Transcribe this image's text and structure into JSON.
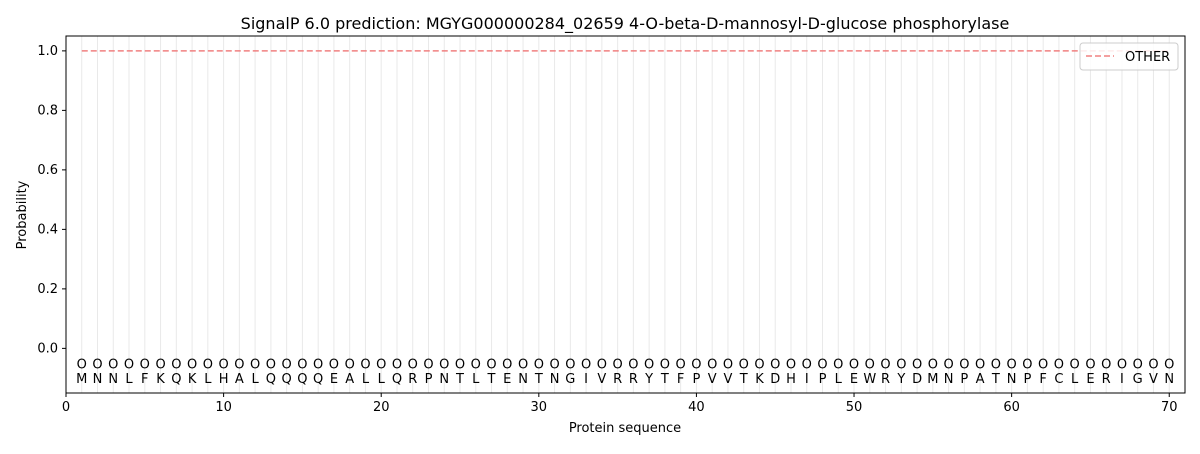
{
  "chart_data": {
    "type": "line",
    "title": "SignalP 6.0 prediction: MGYG000000284_02659 4-O-beta-D-mannosyl-D-glucose phosphorylase",
    "xlabel": "Protein sequence",
    "ylabel": "Probability",
    "xlim": [
      0,
      71
    ],
    "ylim": [
      -0.15,
      1.05
    ],
    "x_ticks": [
      0,
      10,
      20,
      30,
      40,
      50,
      60,
      70
    ],
    "y_ticks": [
      0.0,
      0.2,
      0.4,
      0.6,
      0.8,
      1.0
    ],
    "y_tick_labels": [
      "0.0",
      "0.2",
      "0.4",
      "0.6",
      "0.8",
      "1.0"
    ],
    "sequence": [
      "M",
      "N",
      "N",
      "L",
      "F",
      "K",
      "Q",
      "K",
      "L",
      "H",
      "A",
      "L",
      "Q",
      "Q",
      "Q",
      "Q",
      "E",
      "A",
      "L",
      "L",
      "Q",
      "R",
      "P",
      "N",
      "T",
      "L",
      "T",
      "E",
      "N",
      "T",
      "N",
      "G",
      "I",
      "V",
      "R",
      "R",
      "Y",
      "T",
      "F",
      "P",
      "V",
      "V",
      "T",
      "K",
      "D",
      "H",
      "I",
      "P",
      "L",
      "E",
      "W",
      "R",
      "Y",
      "D",
      "M",
      "N",
      "P",
      "A",
      "T",
      "N",
      "P",
      "F",
      "C",
      "L",
      "E",
      "R",
      "I",
      "G",
      "V",
      "N"
    ],
    "region_label": "O",
    "grid": "vertical lines at each residue",
    "legend_position": "top-right",
    "series": [
      {
        "name": "OTHER",
        "style": "dashed",
        "color": "#f08080",
        "x_range": [
          1,
          70
        ],
        "value": 1.0
      }
    ]
  }
}
